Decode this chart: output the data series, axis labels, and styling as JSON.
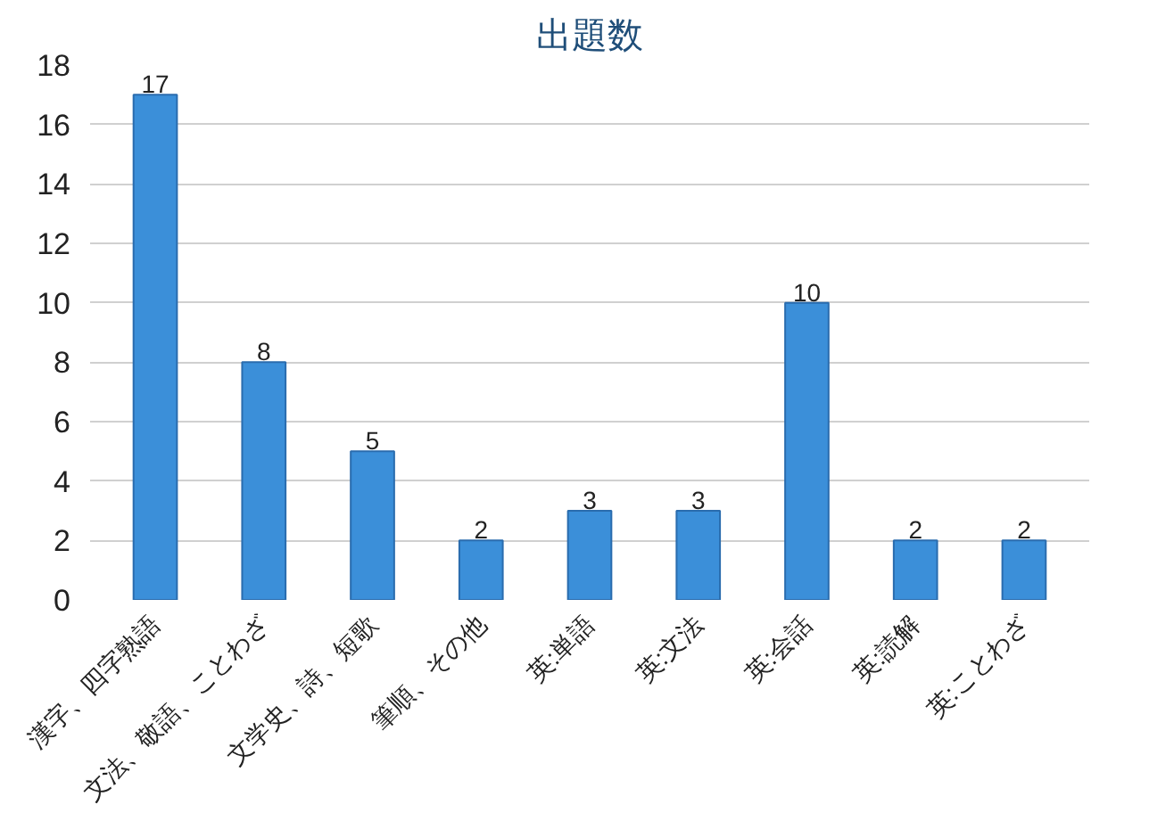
{
  "chart_data": {
    "type": "bar",
    "title": "出題数",
    "categories": [
      "漢字、四字熟語",
      "文法、敬語、ことわざ",
      "文学史、詩、短歌",
      "筆順、その他",
      "英:単語",
      "英:文法",
      "英:会話",
      "英:読解",
      "英:ことわざ"
    ],
    "values": [
      17,
      8,
      5,
      2,
      3,
      3,
      10,
      2,
      2
    ],
    "color": "#3b8fd9",
    "ylim": [
      0,
      18
    ],
    "yticks": [
      0,
      2,
      4,
      6,
      8,
      10,
      12,
      14,
      16,
      18
    ],
    "grid": "y",
    "data_labels": true
  }
}
